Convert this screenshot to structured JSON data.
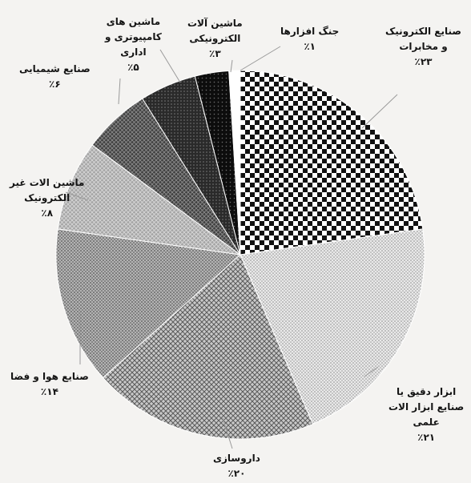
{
  "chart_data": {
    "type": "pie",
    "start_angle_deg": 0,
    "direction": "clockwise",
    "slices": [
      {
        "label_lines": [
          "صنایع الکترونیک",
          "و مخابرات"
        ],
        "percent_text": "٪۲۳",
        "value": 23,
        "pattern": "checker"
      },
      {
        "label_lines": [
          "ابزار دقیق یا",
          "صنایع ابزار الات",
          "علمی"
        ],
        "percent_text": "٪۲۱",
        "value": 21,
        "pattern": "light-dots"
      },
      {
        "label_lines": [
          "داروسازی"
        ],
        "percent_text": "٪۲۰",
        "value": 20,
        "pattern": "cross-hatch"
      },
      {
        "label_lines": [
          "صنایع هوا و فضا"
        ],
        "percent_text": "٪۱۴",
        "value": 14,
        "pattern": "grey-dots"
      },
      {
        "label_lines": [
          "ماشین الات غیر",
          "الکترونیک"
        ],
        "percent_text": "٪۸",
        "value": 8,
        "pattern": "light-grid"
      },
      {
        "label_lines": [
          "صنایع شیمیایی"
        ],
        "percent_text": "٪۶",
        "value": 6,
        "pattern": "dark-grid"
      },
      {
        "label_lines": [
          "ماشین های",
          "کامپیوتری و",
          "اداری"
        ],
        "percent_text": "٪۵",
        "value": 5,
        "pattern": "dark-dots"
      },
      {
        "label_lines": [
          "ماشین آلات",
          "الکترونیکی"
        ],
        "percent_text": "٪۳",
        "value": 3,
        "pattern": "black-dots"
      },
      {
        "label_lines": [
          "جنگ افزارها"
        ],
        "percent_text": "٪۱",
        "value": 1,
        "pattern": "white"
      }
    ]
  }
}
